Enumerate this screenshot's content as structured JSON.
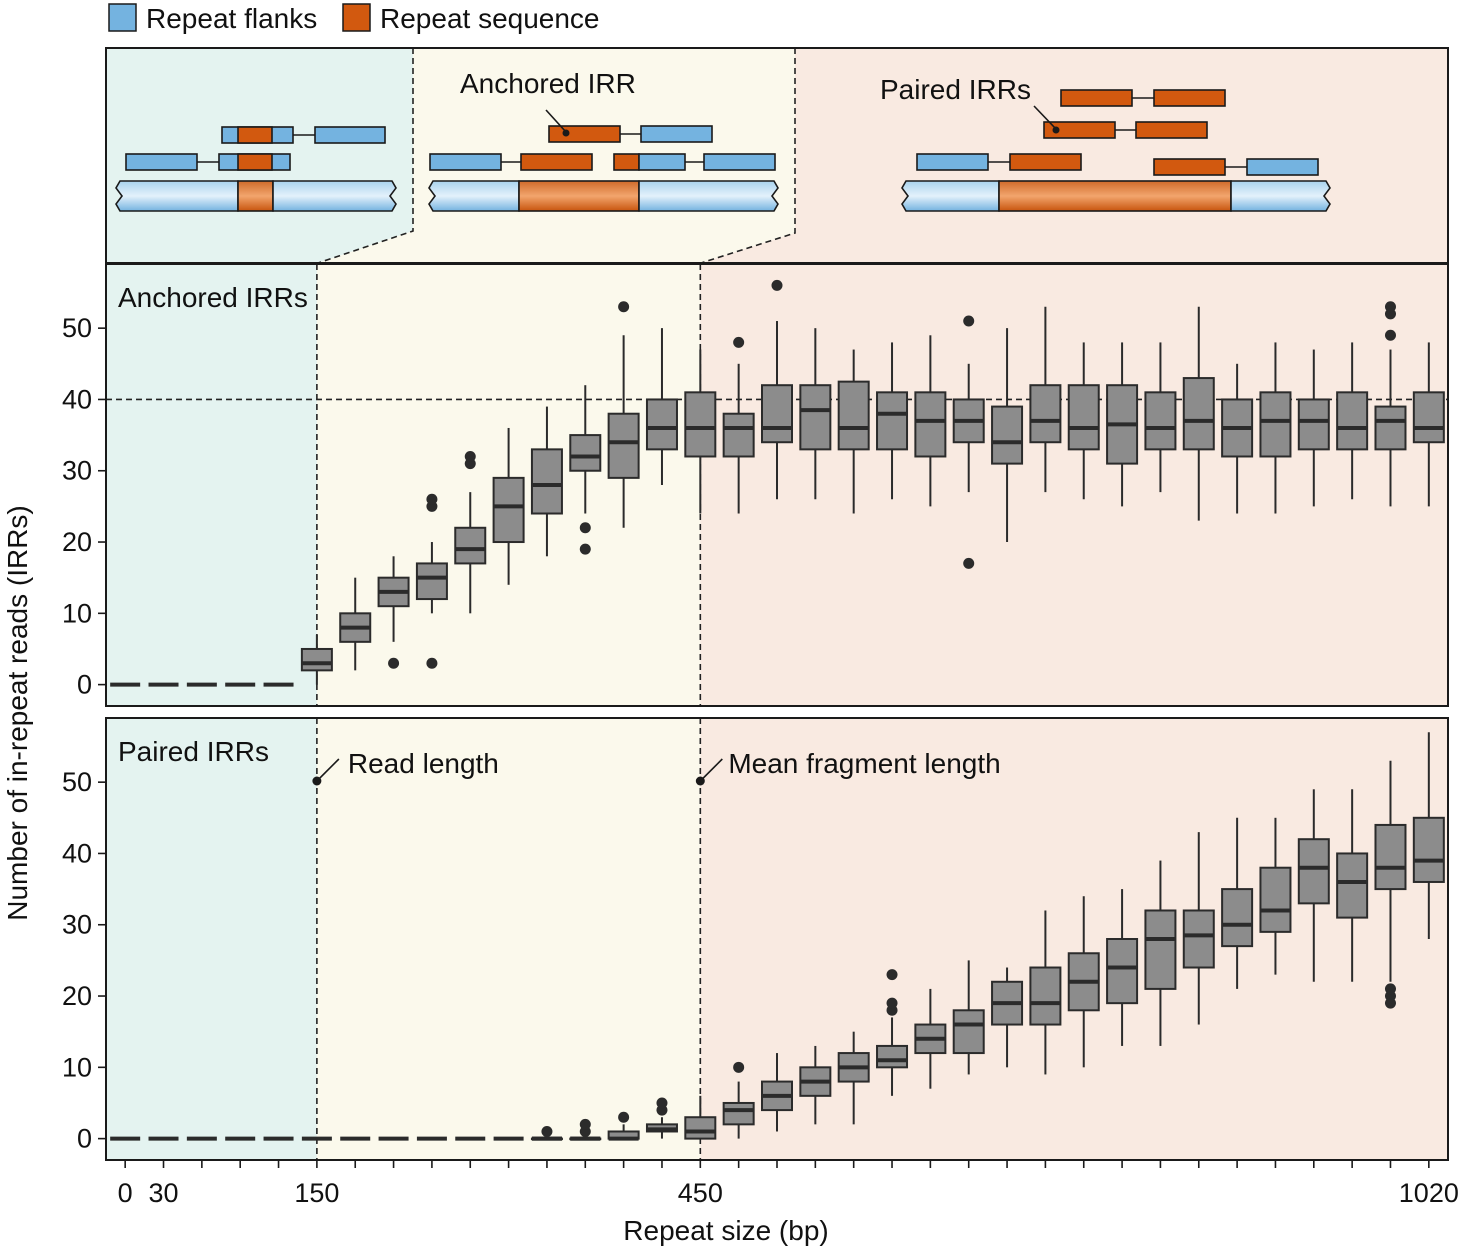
{
  "legend": {
    "flank_label": "Repeat flanks",
    "repeat_label": "Repeat sequence"
  },
  "schematic": {
    "anchored_label": "Anchored IRR",
    "paired_label": "Paired IRRs"
  },
  "colors": {
    "flank": "#74b3e0",
    "repeat": "#d2590f",
    "zone_short": "#e4f3f0",
    "zone_mid": "#fbf9ec",
    "zone_long": "#f9eae1",
    "box_fill": "#8c8c8c",
    "dark": "#2b2b2b"
  },
  "annotations": {
    "read_length": "Read length",
    "mean_fragment_length": "Mean fragment length"
  },
  "chart_data": {
    "type": "box",
    "xlabel": "Repeat size (bp)",
    "ylabel": "Number of in-repeat reads (IRRs)",
    "x_tick_labels": [
      0,
      30,
      150,
      450,
      1020
    ],
    "xlim": [
      -15,
      1035
    ],
    "y_ticks": [
      0,
      10,
      20,
      30,
      40,
      50
    ],
    "read_length": 150,
    "mean_fragment_length": 450,
    "panels": [
      {
        "label": "Anchored IRRs",
        "ylim": [
          -3,
          59
        ],
        "reference_line": 40,
        "zero_positions": [
          0,
          30,
          60,
          90,
          120
        ],
        "boxes": [
          {
            "x": 150,
            "q1": 2,
            "med": 3,
            "q3": 5,
            "lo": 0,
            "hi": 7,
            "out": []
          },
          {
            "x": 180,
            "q1": 6,
            "med": 8,
            "q3": 10,
            "lo": 2,
            "hi": 15,
            "out": []
          },
          {
            "x": 210,
            "q1": 11,
            "med": 13,
            "q3": 15,
            "lo": 6,
            "hi": 18,
            "out": [
              3
            ]
          },
          {
            "x": 240,
            "q1": 12,
            "med": 15,
            "q3": 17,
            "lo": 10,
            "hi": 20,
            "out": [
              3,
              25,
              26
            ]
          },
          {
            "x": 270,
            "q1": 17,
            "med": 19,
            "q3": 22,
            "lo": 10,
            "hi": 27,
            "out": [
              31,
              32
            ]
          },
          {
            "x": 300,
            "q1": 20,
            "med": 25,
            "q3": 29,
            "lo": 14,
            "hi": 36,
            "out": []
          },
          {
            "x": 330,
            "q1": 24,
            "med": 28,
            "q3": 33,
            "lo": 18,
            "hi": 39,
            "out": []
          },
          {
            "x": 360,
            "q1": 30,
            "med": 32,
            "q3": 35,
            "lo": 24,
            "hi": 42,
            "out": [
              19,
              22
            ]
          },
          {
            "x": 390,
            "q1": 29,
            "med": 34,
            "q3": 38,
            "lo": 22,
            "hi": 49,
            "out": [
              53
            ]
          },
          {
            "x": 420,
            "q1": 33,
            "med": 36,
            "q3": 40,
            "lo": 28,
            "hi": 50,
            "out": []
          },
          {
            "x": 450,
            "q1": 32,
            "med": 36,
            "q3": 41,
            "lo": 24,
            "hi": 47,
            "out": []
          },
          {
            "x": 480,
            "q1": 32,
            "med": 36,
            "q3": 38,
            "lo": 24,
            "hi": 45,
            "out": [
              48
            ]
          },
          {
            "x": 510,
            "q1": 34,
            "med": 36,
            "q3": 42,
            "lo": 26,
            "hi": 51,
            "out": [
              56
            ]
          },
          {
            "x": 540,
            "q1": 33,
            "med": 38.5,
            "q3": 42,
            "lo": 26,
            "hi": 50,
            "out": []
          },
          {
            "x": 570,
            "q1": 33,
            "med": 36,
            "q3": 42.5,
            "lo": 24,
            "hi": 47,
            "out": []
          },
          {
            "x": 600,
            "q1": 33,
            "med": 38,
            "q3": 41,
            "lo": 26,
            "hi": 48,
            "out": []
          },
          {
            "x": 630,
            "q1": 32,
            "med": 37,
            "q3": 41,
            "lo": 25,
            "hi": 49,
            "out": []
          },
          {
            "x": 660,
            "q1": 34,
            "med": 37,
            "q3": 40,
            "lo": 27,
            "hi": 45,
            "out": [
              17,
              51
            ]
          },
          {
            "x": 690,
            "q1": 31,
            "med": 34,
            "q3": 39,
            "lo": 20,
            "hi": 50,
            "out": []
          },
          {
            "x": 720,
            "q1": 34,
            "med": 37,
            "q3": 42,
            "lo": 27,
            "hi": 53,
            "out": []
          },
          {
            "x": 750,
            "q1": 33,
            "med": 36,
            "q3": 42,
            "lo": 26,
            "hi": 48,
            "out": []
          },
          {
            "x": 780,
            "q1": 31,
            "med": 36.5,
            "q3": 42,
            "lo": 25,
            "hi": 48,
            "out": []
          },
          {
            "x": 810,
            "q1": 33,
            "med": 36,
            "q3": 41,
            "lo": 27,
            "hi": 48,
            "out": []
          },
          {
            "x": 840,
            "q1": 33,
            "med": 37,
            "q3": 43,
            "lo": 23,
            "hi": 53,
            "out": []
          },
          {
            "x": 870,
            "q1": 32,
            "med": 36,
            "q3": 40,
            "lo": 24,
            "hi": 45,
            "out": []
          },
          {
            "x": 900,
            "q1": 32,
            "med": 37,
            "q3": 41,
            "lo": 24,
            "hi": 48,
            "out": []
          },
          {
            "x": 930,
            "q1": 33,
            "med": 37,
            "q3": 40,
            "lo": 25,
            "hi": 47,
            "out": []
          },
          {
            "x": 960,
            "q1": 33,
            "med": 36,
            "q3": 41,
            "lo": 26,
            "hi": 48,
            "out": []
          },
          {
            "x": 990,
            "q1": 33,
            "med": 37,
            "q3": 39,
            "lo": 25,
            "hi": 47,
            "out": [
              49,
              52,
              53
            ]
          },
          {
            "x": 1020,
            "q1": 34,
            "med": 36,
            "q3": 41,
            "lo": 25,
            "hi": 48,
            "out": []
          }
        ]
      },
      {
        "label": "Paired IRRs",
        "ylim": [
          -3,
          59
        ],
        "zero_positions": [
          0,
          30,
          60,
          90,
          120,
          150,
          180,
          210,
          240,
          270,
          300,
          330,
          360
        ],
        "boxes": [
          {
            "x": 330,
            "q1": 0,
            "med": 0,
            "q3": 0,
            "lo": 0,
            "hi": 0,
            "out": [
              1
            ]
          },
          {
            "x": 360,
            "q1": 0,
            "med": 0,
            "q3": 0,
            "lo": 0,
            "hi": 0,
            "out": [
              1,
              2
            ]
          },
          {
            "x": 390,
            "q1": 0,
            "med": 0,
            "q3": 1,
            "lo": 0,
            "hi": 2,
            "out": [
              3
            ]
          },
          {
            "x": 420,
            "q1": 1,
            "med": 1.3,
            "q3": 2,
            "lo": 0,
            "hi": 3,
            "out": [
              4,
              5
            ]
          },
          {
            "x": 450,
            "q1": 0,
            "med": 1,
            "q3": 3,
            "lo": 0,
            "hi": 6,
            "out": []
          },
          {
            "x": 480,
            "q1": 2,
            "med": 4,
            "q3": 5,
            "lo": 0,
            "hi": 8,
            "out": [
              10
            ]
          },
          {
            "x": 510,
            "q1": 4,
            "med": 6,
            "q3": 8,
            "lo": 1,
            "hi": 12,
            "out": []
          },
          {
            "x": 540,
            "q1": 6,
            "med": 8,
            "q3": 10,
            "lo": 2,
            "hi": 13,
            "out": []
          },
          {
            "x": 570,
            "q1": 8,
            "med": 10,
            "q3": 12,
            "lo": 2,
            "hi": 15,
            "out": []
          },
          {
            "x": 600,
            "q1": 10,
            "med": 11,
            "q3": 13,
            "lo": 6,
            "hi": 17,
            "out": [
              18,
              19,
              23
            ]
          },
          {
            "x": 630,
            "q1": 12,
            "med": 14,
            "q3": 16,
            "lo": 7,
            "hi": 21,
            "out": []
          },
          {
            "x": 660,
            "q1": 12,
            "med": 16,
            "q3": 18,
            "lo": 9,
            "hi": 25,
            "out": []
          },
          {
            "x": 690,
            "q1": 16,
            "med": 19,
            "q3": 22,
            "lo": 10,
            "hi": 24,
            "out": []
          },
          {
            "x": 720,
            "q1": 16,
            "med": 19,
            "q3": 24,
            "lo": 9,
            "hi": 32,
            "out": []
          },
          {
            "x": 750,
            "q1": 18,
            "med": 22,
            "q3": 26,
            "lo": 10,
            "hi": 34,
            "out": []
          },
          {
            "x": 780,
            "q1": 19,
            "med": 24,
            "q3": 28,
            "lo": 13,
            "hi": 35,
            "out": []
          },
          {
            "x": 810,
            "q1": 21,
            "med": 28,
            "q3": 32,
            "lo": 13,
            "hi": 39,
            "out": []
          },
          {
            "x": 840,
            "q1": 24,
            "med": 28.5,
            "q3": 32,
            "lo": 16,
            "hi": 43,
            "out": []
          },
          {
            "x": 870,
            "q1": 27,
            "med": 30,
            "q3": 35,
            "lo": 21,
            "hi": 45,
            "out": []
          },
          {
            "x": 900,
            "q1": 29,
            "med": 32,
            "q3": 38,
            "lo": 23,
            "hi": 45,
            "out": []
          },
          {
            "x": 930,
            "q1": 33,
            "med": 38,
            "q3": 42,
            "lo": 22,
            "hi": 49,
            "out": []
          },
          {
            "x": 960,
            "q1": 31,
            "med": 36,
            "q3": 40,
            "lo": 22,
            "hi": 49,
            "out": []
          },
          {
            "x": 990,
            "q1": 35,
            "med": 38,
            "q3": 44,
            "lo": 22,
            "hi": 53,
            "out": [
              19,
              20,
              21
            ]
          },
          {
            "x": 1020,
            "q1": 36,
            "med": 39,
            "q3": 45,
            "lo": 28,
            "hi": 57,
            "out": []
          }
        ]
      }
    ]
  }
}
